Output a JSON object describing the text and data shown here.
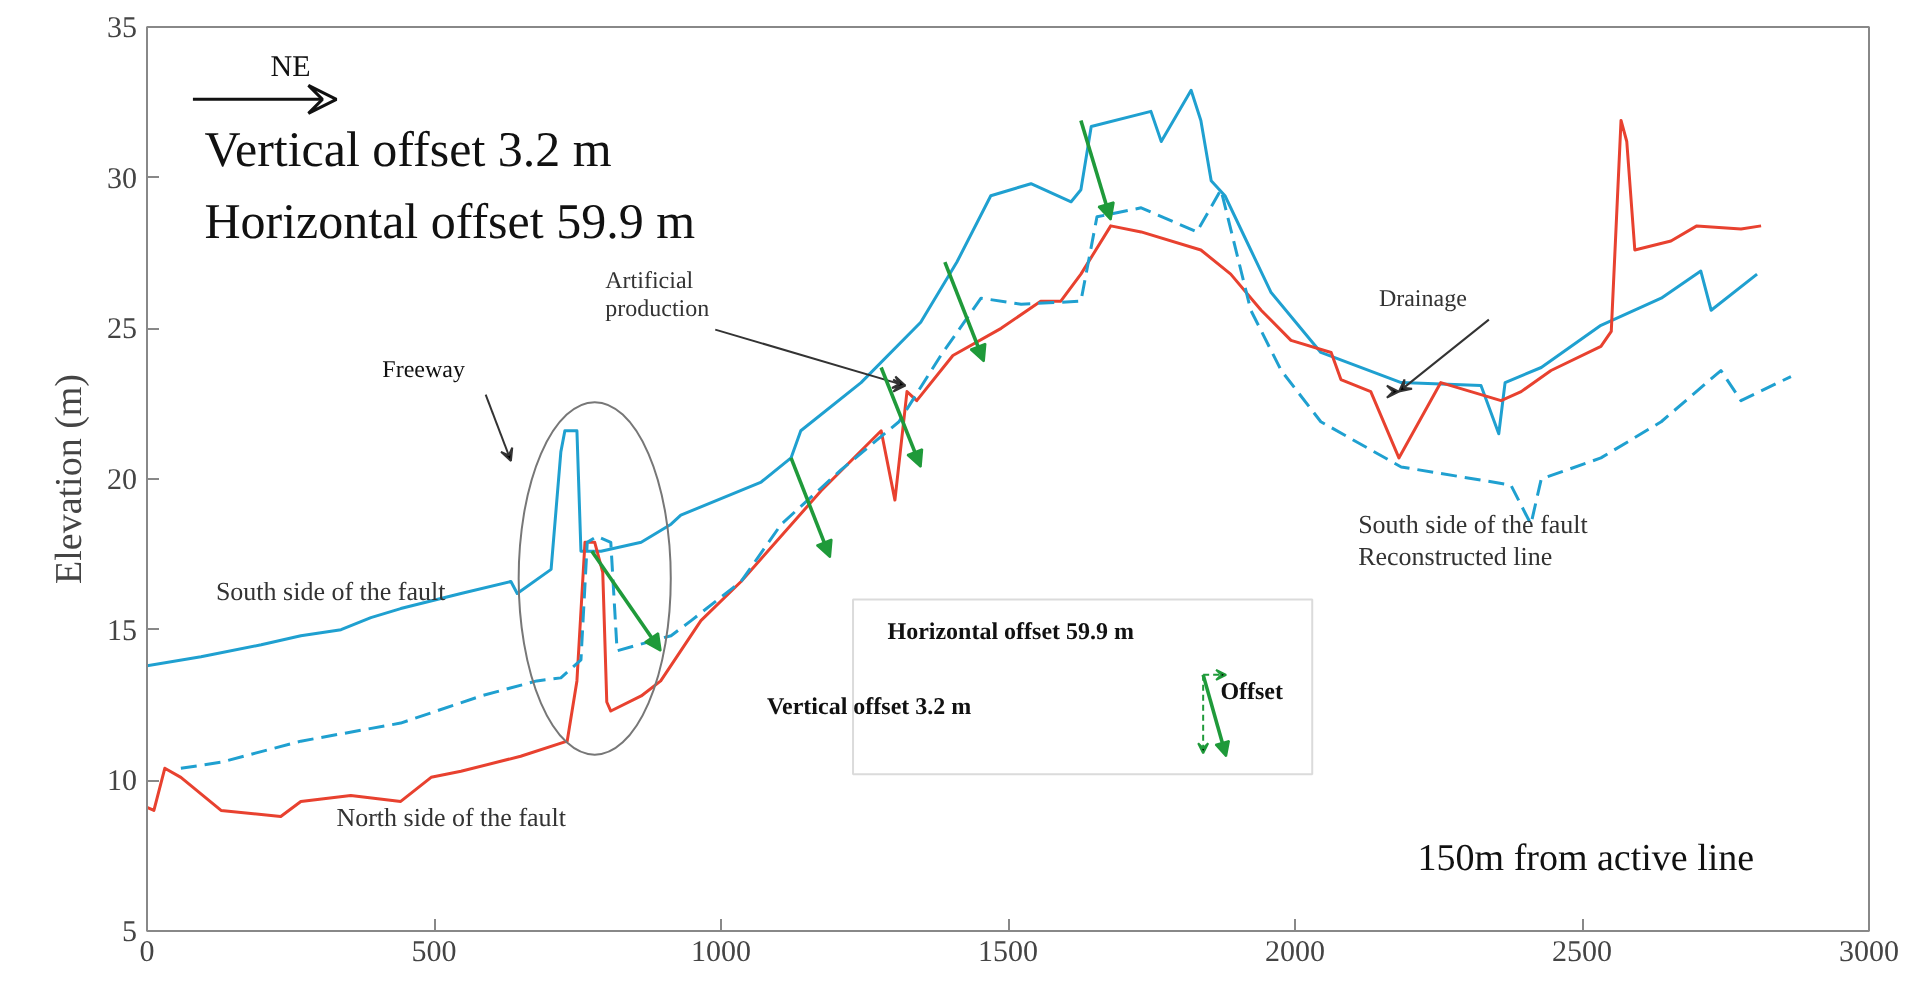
{
  "chart_data": {
    "type": "line",
    "ylabel": "Elevation (m)",
    "xlim": [
      0,
      3000
    ],
    "ylim": [
      5,
      35
    ],
    "xticks": [
      0,
      500,
      1000,
      1500,
      2000,
      2500,
      3000
    ],
    "yticks": [
      5,
      10,
      15,
      20,
      25,
      30,
      35
    ],
    "grid": false,
    "marker": "none",
    "series": [
      {
        "name": "South side of the fault",
        "color": "#1fa0d0",
        "line_style": "solid",
        "x": [
          0,
          94,
          199,
          268,
          338,
          390,
          442,
          547,
          634,
          645,
          704,
          721,
          728,
          749,
          756,
          791,
          861,
          913,
          930,
          1070,
          1122,
          1139,
          1244,
          1348,
          1411,
          1470,
          1540,
          1610,
          1627,
          1645,
          1749,
          1767,
          1819,
          1836,
          1854,
          1878,
          1923,
          1958,
          2045,
          2185,
          2324,
          2355,
          2366,
          2429,
          2533,
          2638,
          2707,
          2725,
          2805
        ],
        "values": [
          13.8,
          14.1,
          14.5,
          14.8,
          15.0,
          15.4,
          15.7,
          16.2,
          16.6,
          16.2,
          17.0,
          20.9,
          21.6,
          21.6,
          17.6,
          17.6,
          17.9,
          18.5,
          18.8,
          19.9,
          20.7,
          21.6,
          23.2,
          25.2,
          27.2,
          29.4,
          29.8,
          29.2,
          29.6,
          31.7,
          32.2,
          31.2,
          32.9,
          31.9,
          29.9,
          29.4,
          27.6,
          26.2,
          24.2,
          23.2,
          23.1,
          21.5,
          23.2,
          23.7,
          25.1,
          26.0,
          26.9,
          25.6,
          26.8
        ]
      },
      {
        "name": "North side of the fault",
        "color": "#e8412f",
        "line_style": "solid",
        "x": [
          0,
          12,
          31,
          59,
          129,
          233,
          268,
          355,
          442,
          495,
          547,
          651,
          732,
          749,
          763,
          780,
          794,
          801,
          808,
          861,
          895,
          965,
          1035,
          1174,
          1279,
          1303,
          1324,
          1341,
          1404,
          1488,
          1557,
          1592,
          1627,
          1679,
          1732,
          1836,
          1888,
          1941,
          1993,
          2063,
          2080,
          2132,
          2181,
          2254,
          2359,
          2394,
          2446,
          2533,
          2551,
          2568,
          2578,
          2592,
          2655,
          2700,
          2777,
          2812
        ],
        "values": [
          9.1,
          9.0,
          10.4,
          10.1,
          9.0,
          8.8,
          9.3,
          9.5,
          9.3,
          10.1,
          10.3,
          10.8,
          11.3,
          13.3,
          17.9,
          17.9,
          16.9,
          12.6,
          12.3,
          12.8,
          13.3,
          15.3,
          16.6,
          19.6,
          21.6,
          19.3,
          22.9,
          22.6,
          24.1,
          25.0,
          25.9,
          25.9,
          26.8,
          28.4,
          28.2,
          27.6,
          26.8,
          25.6,
          24.6,
          24.2,
          23.3,
          22.9,
          20.7,
          23.2,
          22.6,
          22.9,
          23.6,
          24.4,
          24.9,
          31.9,
          31.2,
          27.6,
          27.9,
          28.4,
          28.3,
          28.4
        ]
      },
      {
        "name": "South side of the fault\nReconstructed line",
        "color": "#1fa0d0",
        "line_style": "dashed",
        "x": [
          59,
          129,
          268,
          442,
          582,
          679,
          721,
          756,
          767,
          784,
          808,
          819,
          913,
          948,
          1035,
          1105,
          1209,
          1310,
          1383,
          1453,
          1523,
          1627,
          1655,
          1732,
          1829,
          1871,
          1923,
          1976,
          2045,
          2185,
          2376,
          2411,
          2429,
          2533,
          2638,
          2742,
          2777,
          2864
        ],
        "values": [
          10.4,
          10.6,
          11.3,
          11.9,
          12.8,
          13.3,
          13.4,
          14.0,
          17.9,
          18.1,
          17.9,
          14.3,
          14.8,
          15.3,
          16.6,
          18.5,
          20.3,
          21.9,
          24.1,
          26.0,
          25.8,
          25.9,
          28.7,
          29.0,
          28.2,
          29.6,
          25.6,
          23.6,
          21.9,
          20.4,
          19.8,
          18.5,
          20.0,
          20.7,
          21.9,
          23.6,
          22.6,
          23.4
        ]
      }
    ],
    "annotations": [
      "NE",
      "Vertical offset 3.2 m",
      "Horizontal offset 59.9 m",
      "Freeway",
      {
        "text": "Artificial\nproduction",
        "x": 1321,
        "y": 23.1
      },
      {
        "text": "Drainage",
        "x": 2181,
        "y": 22.9
      },
      "Horizontal offset 59.9 m",
      "Vertical offset 3.2 m",
      "Offset",
      "150m from active line"
    ]
  }
}
